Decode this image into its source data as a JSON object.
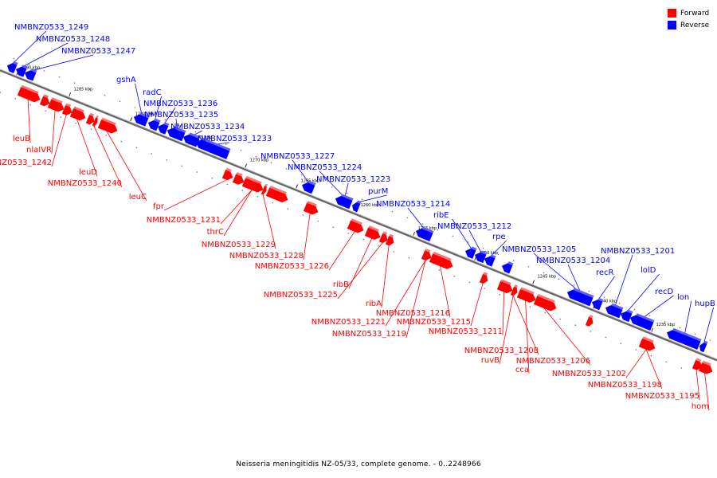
{
  "caption": "Neisseria meningitidis NZ-05/33, complete genome. - 0..2248966",
  "legend": [
    {
      "label": "Forward",
      "color": "#ff0000"
    },
    {
      "label": "Reverse",
      "color": "#0000ff"
    }
  ],
  "colors": {
    "forward": "#ff0000",
    "reverse": "#0000ff",
    "backbone": "#888888"
  },
  "ticks": [
    "1290 kbp",
    "1285 kbp",
    "1280 kbp",
    "1275 kbp",
    "1270 kbp",
    "1265 kbp",
    "1260 kbp",
    "1255 kbp",
    "1250 kbp",
    "1245 kbp",
    "1240 kbp",
    "1235 kbp"
  ],
  "reverse_genes": [
    "NMBNZ0533_1249",
    "NMBNZ0533_1248",
    "NMBNZ0533_1247",
    "gshA",
    "radC",
    "NMBNZ0533_1236",
    "NMBNZ0533_1235",
    "NMBNZ0533_1234",
    "NMBNZ0533_1233",
    "NMBNZ0533_1227",
    "NMBNZ0533_1224",
    "NMBNZ0533_1223",
    "purM",
    "NMBNZ0533_1214",
    "ribE",
    "NMBNZ0533_1212",
    "rpe",
    "NMBNZ0533_1205",
    "NMBNZ0533_1204",
    "recR",
    "NMBNZ0533_1201",
    "lolD",
    "recD",
    "lon",
    "hupB"
  ],
  "forward_genes": [
    "leuB",
    "nlaIVR",
    "NMBNZ0533_1242",
    "leuD",
    "NMBNZ0533_1240",
    "leuC",
    "fpr",
    "NMBNZ0533_1231",
    "thrC",
    "NMBNZ0533_1229",
    "NMBNZ0533_1228",
    "NMBNZ0533_1226",
    "ribB",
    "NMBNZ0533_1225",
    "ribA",
    "NMBNZ0533_1221",
    "NMBNZ0533_1219",
    "NMBNZ0533_1216",
    "NMBNZ0533_1215",
    "NMBNZ0533_1211",
    "NMBNZ0533_1208",
    "ruvB",
    "cca",
    "NMBNZ0533_1206",
    "NMBNZ0533_1202",
    "NMBNZ0533_1198",
    "NMBNZ0533_1195",
    "hom"
  ]
}
